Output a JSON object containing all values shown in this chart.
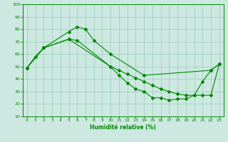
{
  "xlabel": "Humidité relative (%)",
  "background_color": "#cce8e0",
  "grid_color": "#99ccbb",
  "line_color": "#008800",
  "xlim": [
    -0.5,
    23.5
  ],
  "ylim": [
    10,
    100
  ],
  "xticks": [
    0,
    1,
    2,
    3,
    4,
    5,
    6,
    7,
    8,
    9,
    10,
    11,
    12,
    13,
    14,
    15,
    16,
    17,
    18,
    19,
    20,
    21,
    22,
    23
  ],
  "yticks": [
    10,
    20,
    30,
    40,
    50,
    60,
    70,
    80,
    90,
    100
  ],
  "line_A_x": [
    0,
    1,
    2,
    5,
    6,
    7,
    8,
    10,
    14,
    22,
    23
  ],
  "line_A_y": [
    49,
    58,
    65,
    78,
    82,
    80,
    71,
    60,
    43,
    47,
    52
  ],
  "line_B_x": [
    0,
    2,
    5,
    6,
    10,
    11,
    12,
    13,
    14,
    15,
    16,
    17,
    18,
    19,
    20,
    21,
    22,
    23
  ],
  "line_B_y": [
    49,
    65,
    72,
    71,
    50,
    47,
    44,
    41,
    38,
    35,
    32,
    30,
    28,
    27,
    27,
    27,
    27,
    52
  ],
  "line_C_x": [
    0,
    2,
    5,
    10,
    11,
    12,
    13,
    14,
    15,
    16,
    17,
    18,
    19,
    20,
    21,
    22,
    23
  ],
  "line_C_y": [
    49,
    65,
    72,
    50,
    43,
    37,
    32,
    30,
    25,
    25,
    23,
    24,
    24,
    27,
    38,
    47,
    52
  ]
}
